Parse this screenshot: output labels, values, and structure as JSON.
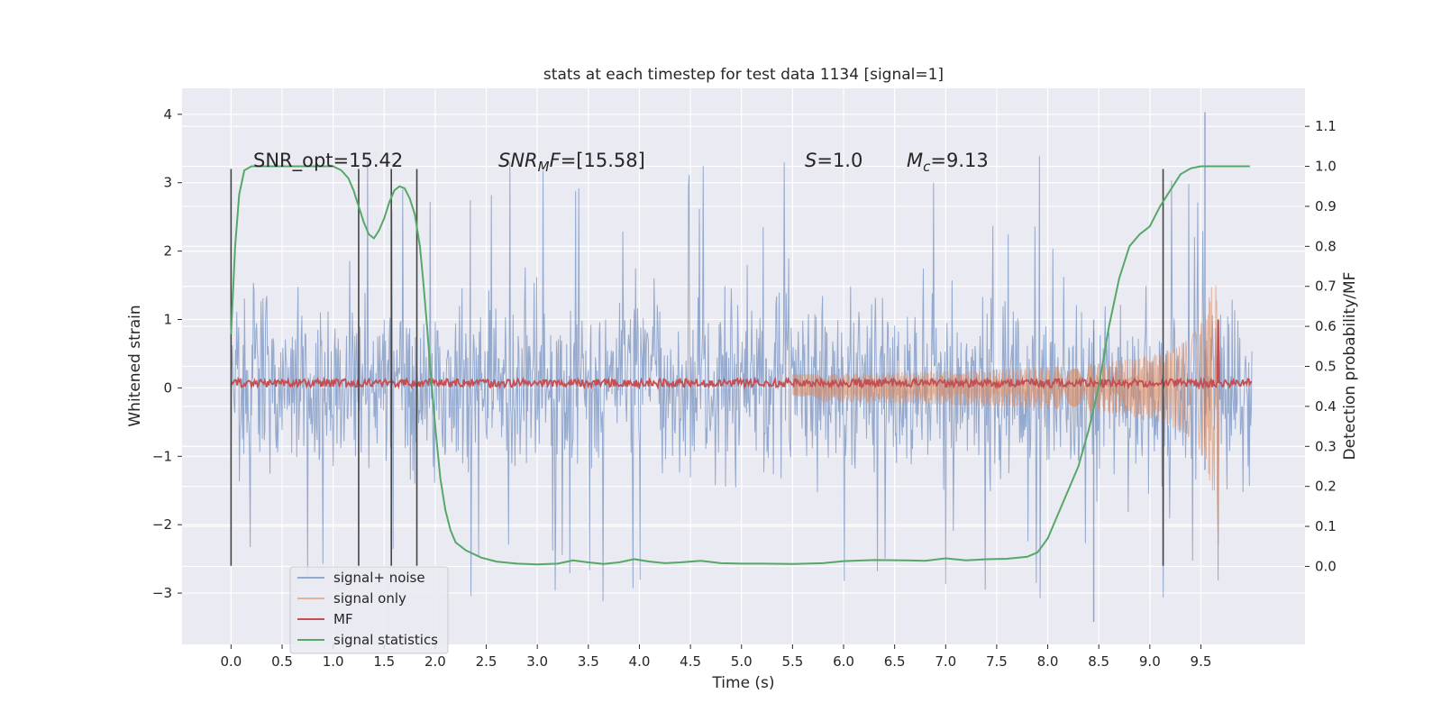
{
  "chart_data": {
    "type": "line",
    "title": "stats at each timestep for test data 1134 [signal=1]",
    "xlabel": "Time (s)",
    "ylabel_left": "Whitened strain",
    "ylabel_right": "Detection probability/MF",
    "xlim": [
      -0.48,
      10.52
    ],
    "ylim_left": [
      -3.75,
      4.38
    ],
    "ylim_right": [
      -0.195,
      1.195
    ],
    "xticks": [
      0.0,
      0.5,
      1.0,
      1.5,
      2.0,
      2.5,
      3.0,
      3.5,
      4.0,
      4.5,
      5.0,
      5.5,
      6.0,
      6.5,
      7.0,
      7.5,
      8.0,
      8.5,
      9.0,
      9.5
    ],
    "xtick_labels": [
      "0.0",
      "0.5",
      "1.0",
      "1.5",
      "2.0",
      "2.5",
      "3.0",
      "3.5",
      "4.0",
      "4.5",
      "5.0",
      "5.5",
      "6.0",
      "6.5",
      "7.0",
      "7.5",
      "8.0",
      "8.5",
      "9.0",
      "9.5"
    ],
    "yticks_left": [
      4,
      3,
      2,
      1,
      0,
      -1,
      -2,
      -3
    ],
    "ytick_labels_left": [
      "4",
      "3",
      "2",
      "1",
      "0",
      "−1",
      "−2",
      "−3"
    ],
    "yticks_right": [
      1.1,
      1.0,
      0.9,
      0.8,
      0.7,
      0.6,
      0.5,
      0.4,
      0.3,
      0.2,
      0.1,
      0.0
    ],
    "ytick_labels_right": [
      "1.1",
      "1.0",
      "0.9",
      "0.8",
      "0.7",
      "0.6",
      "0.5",
      "0.4",
      "0.3",
      "0.2",
      "0.1",
      "0.0"
    ],
    "grid": true,
    "legend_location": "lower-left",
    "legend": [
      "signal+ noise",
      "signal only",
      "MF",
      "signal statistics"
    ],
    "annotations": {
      "snr_opt": "SNR_opt=15.42",
      "snr_mf_symbol": "SNR",
      "snr_mf_subscript": "M",
      "snr_mf_f": "F",
      "snr_mf_value": "=[15.58]",
      "s_symbol": "S",
      "s_value": "=1.0",
      "mc_symbol": "M",
      "mc_subscript": "c",
      "mc_value": "=9.13"
    },
    "vertical_markers": [
      0.0,
      1.25,
      1.57,
      1.82,
      9.13
    ],
    "vertical_marker_range": [
      -2.6,
      3.2
    ],
    "series": [
      {
        "name": "signal+ noise",
        "color": "#4c72b0",
        "axis": "left",
        "x_range": [
          0.0,
          10.0
        ],
        "envelope_ranges": [
          -1.45,
          1.45
        ],
        "spike_max": 4.03,
        "spike_min": -3.42
      },
      {
        "name": "signal only",
        "color": "#dd8452",
        "axis": "left",
        "chirp_start": 5.5,
        "merger": 9.66,
        "peak_amplitude": 1.5,
        "peak_min": -2.3
      },
      {
        "name": "MF",
        "color": "#c44e52",
        "axis": "left",
        "baseline": 0.07,
        "noise_amp": 0.06,
        "peak_x": 9.67,
        "peak_y": 1.0
      },
      {
        "name": "signal statistics",
        "color": "#55a868",
        "axis": "right",
        "x": [
          0.0,
          0.04,
          0.08,
          0.13,
          0.2,
          0.3,
          0.5,
          0.7,
          0.9,
          1.0,
          1.08,
          1.15,
          1.2,
          1.25,
          1.3,
          1.35,
          1.4,
          1.45,
          1.5,
          1.55,
          1.6,
          1.65,
          1.7,
          1.75,
          1.8,
          1.85,
          1.88,
          1.92,
          1.95,
          2.0,
          2.05,
          2.1,
          2.15,
          2.2,
          2.3,
          2.45,
          2.6,
          2.8,
          3.0,
          3.2,
          3.35,
          3.5,
          3.65,
          3.8,
          3.95,
          4.1,
          4.25,
          4.4,
          4.6,
          4.8,
          5.0,
          5.2,
          5.5,
          5.8,
          6.0,
          6.3,
          6.6,
          6.8,
          7.0,
          7.2,
          7.4,
          7.6,
          7.8,
          7.9,
          8.0,
          8.1,
          8.2,
          8.3,
          8.4,
          8.5,
          8.6,
          8.7,
          8.8,
          8.9,
          9.0,
          9.1,
          9.2,
          9.3,
          9.4,
          9.5,
          9.6,
          9.7,
          9.8,
          9.9,
          9.98
        ],
        "y": [
          0.58,
          0.8,
          0.93,
          0.99,
          1.0,
          1.0,
          1.0,
          1.0,
          1.0,
          1.0,
          0.99,
          0.97,
          0.94,
          0.9,
          0.86,
          0.83,
          0.82,
          0.84,
          0.87,
          0.91,
          0.94,
          0.95,
          0.945,
          0.92,
          0.88,
          0.8,
          0.72,
          0.6,
          0.5,
          0.35,
          0.22,
          0.14,
          0.09,
          0.06,
          0.04,
          0.022,
          0.012,
          0.007,
          0.005,
          0.007,
          0.015,
          0.01,
          0.006,
          0.01,
          0.018,
          0.012,
          0.008,
          0.01,
          0.014,
          0.008,
          0.007,
          0.007,
          0.006,
          0.008,
          0.013,
          0.016,
          0.015,
          0.014,
          0.02,
          0.015,
          0.018,
          0.019,
          0.024,
          0.035,
          0.07,
          0.13,
          0.19,
          0.25,
          0.34,
          0.45,
          0.6,
          0.72,
          0.8,
          0.83,
          0.85,
          0.9,
          0.94,
          0.98,
          0.995,
          1.0,
          1.0,
          1.0,
          1.0,
          1.0,
          1.0
        ]
      }
    ]
  }
}
